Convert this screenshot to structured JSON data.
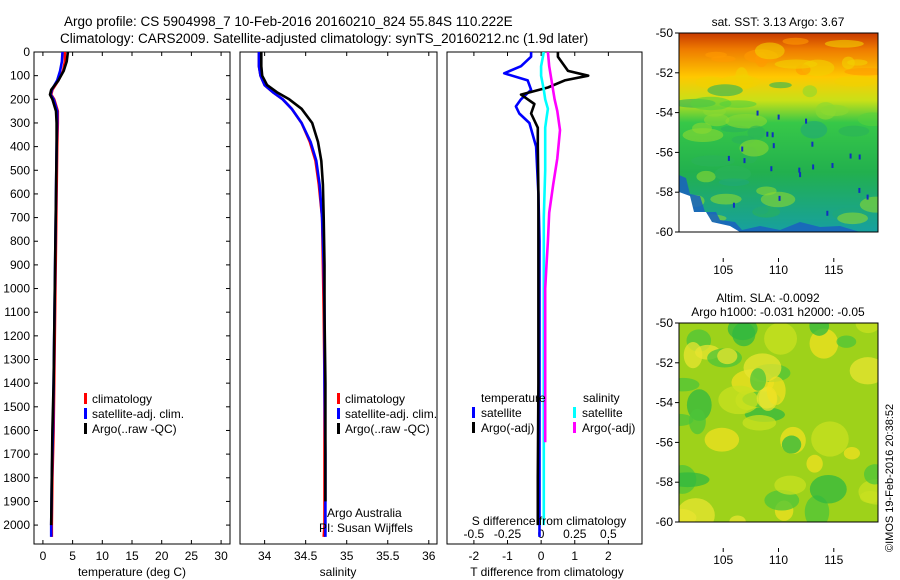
{
  "header": {
    "line1": "Argo profile: CS 5904998_7 10-Feb-2016 20160210_824 55.84S 110.222E",
    "line2": "Climatology: CARS2009. Satellite-adjusted climatology: synTS_20160212.nc (1.9d later)"
  },
  "side_label": "©IMOS 19-Feb-2016 20:38:52",
  "colors": {
    "climatology": "#ff0000",
    "satellite": "#0000ff",
    "argo": "#000000",
    "salinity_satellite": "#00ffff",
    "salinity_argo": "#ff00ff"
  },
  "chart_data": [
    {
      "id": "temperature",
      "type": "line",
      "xlabel": "temperature (deg C)",
      "ylabel": "",
      "xlim": [
        -1.5,
        31.5
      ],
      "ylim": [
        2080,
        0
      ],
      "y_axis_reversed": true,
      "xticks": [
        0,
        5,
        10,
        15,
        20,
        25,
        30
      ],
      "yticks": [
        0,
        100,
        200,
        300,
        400,
        500,
        600,
        700,
        800,
        900,
        1000,
        1100,
        1200,
        1300,
        1400,
        1500,
        1600,
        1700,
        1800,
        1900,
        2000
      ],
      "legend": [
        "climatology",
        "satellite-adj. clim.",
        "Argo(..raw -QC)"
      ],
      "series": [
        {
          "name": "climatology",
          "color": "#ff0000",
          "x": [
            3.7,
            3.7,
            3.4,
            2.6,
            1.6,
            1.4,
            1.9,
            2.5,
            2.5,
            2.4,
            2.3,
            2.2,
            2.1,
            2.0,
            1.9,
            1.8,
            1.6,
            1.5,
            1.5
          ],
          "y": [
            0,
            40,
            80,
            120,
            160,
            180,
            200,
            250,
            300,
            400,
            600,
            800,
            1000,
            1200,
            1400,
            1600,
            1800,
            2000,
            2050
          ]
        },
        {
          "name": "satellite-adj. clim.",
          "color": "#0000ff",
          "x": [
            3.3,
            3.2,
            2.9,
            2.4,
            1.5,
            1.3,
            1.8,
            2.4,
            2.4,
            2.3,
            2.2,
            2.1,
            2.0,
            1.9,
            1.8,
            1.7,
            1.5,
            1.4,
            1.4
          ],
          "y": [
            0,
            40,
            80,
            120,
            160,
            180,
            200,
            250,
            300,
            400,
            600,
            800,
            1000,
            1200,
            1400,
            1600,
            1800,
            2000,
            2050
          ]
        },
        {
          "name": "Argo(..raw -QC)",
          "color": "#000000",
          "x": [
            4.2,
            4.0,
            3.5,
            2.6,
            1.4,
            1.2,
            1.6,
            2.2,
            2.3,
            2.3,
            2.2,
            2.1,
            2.0,
            1.9,
            1.8,
            1.6,
            1.5,
            1.4
          ],
          "y": [
            0,
            40,
            80,
            120,
            160,
            180,
            200,
            250,
            300,
            400,
            600,
            800,
            1000,
            1200,
            1400,
            1600,
            1800,
            2000
          ]
        }
      ]
    },
    {
      "id": "salinity",
      "type": "line",
      "xlabel": "salinity",
      "ylabel": "",
      "xlim": [
        33.7,
        36.1
      ],
      "ylim": [
        2080,
        0
      ],
      "y_axis_reversed": true,
      "xticks": [
        34,
        34.5,
        35,
        35.5,
        36
      ],
      "xtick_labels": [
        "34",
        "34.5",
        "35",
        "35.5",
        "36"
      ],
      "legend": [
        "climatology",
        "satellite-adj. clim.",
        "Argo(..raw -QC)"
      ],
      "annotation": [
        "Argo Australia",
        "PI: Susan Wijffels"
      ],
      "series": [
        {
          "name": "climatology",
          "color": "#ff0000",
          "x": [
            33.93,
            33.93,
            33.95,
            34.0,
            34.1,
            34.22,
            34.33,
            34.45,
            34.55,
            34.62,
            34.66,
            34.7,
            34.71,
            34.72,
            34.73,
            34.73,
            34.73,
            34.73,
            34.72
          ],
          "y": [
            0,
            60,
            100,
            140,
            170,
            200,
            240,
            300,
            380,
            460,
            560,
            700,
            900,
            1100,
            1400,
            1700,
            1900,
            2000,
            2050
          ]
        },
        {
          "name": "satellite-adj. clim.",
          "color": "#0000ff",
          "x": [
            33.93,
            33.93,
            33.95,
            34.0,
            34.1,
            34.22,
            34.33,
            34.45,
            34.56,
            34.63,
            34.67,
            34.7,
            34.72,
            34.73,
            34.73,
            34.74,
            34.74,
            34.74,
            34.74
          ],
          "y": [
            0,
            60,
            100,
            140,
            170,
            200,
            240,
            300,
            380,
            460,
            560,
            700,
            900,
            1100,
            1400,
            1700,
            1900,
            2000,
            2050
          ]
        },
        {
          "name": "Argo(..raw -QC)",
          "color": "#000000",
          "x": [
            33.96,
            33.96,
            33.97,
            34.03,
            34.15,
            34.3,
            34.45,
            34.58,
            34.65,
            34.69,
            34.71,
            34.72,
            34.73,
            34.73,
            34.74,
            34.74,
            34.74
          ],
          "y": [
            0,
            60,
            100,
            140,
            170,
            200,
            240,
            300,
            380,
            460,
            560,
            700,
            900,
            1100,
            1400,
            1700,
            1900
          ]
        }
      ]
    },
    {
      "id": "difference",
      "type": "line",
      "xlabel": "T difference from climatology",
      "xlabel_top": "S difference from climatology",
      "ylabel": "",
      "xlim": [
        -2.8,
        3.0
      ],
      "ylim": [
        2080,
        0
      ],
      "y_axis_reversed": true,
      "xticks": [
        -2,
        -1,
        0,
        1,
        2
      ],
      "x2ticks": [
        -0.5,
        -0.25,
        0,
        0.25,
        0.5
      ],
      "legend_groups": [
        {
          "title": "temperature",
          "entries": [
            "satellite",
            "Argo(-adj)"
          ]
        },
        {
          "title": "salinity",
          "entries": [
            "satellite",
            "Argo(-adj)"
          ]
        }
      ],
      "series": [
        {
          "name": "temperature satellite",
          "color": "#0000ff",
          "x": [
            -0.3,
            -0.3,
            -0.6,
            -1.1,
            -0.4,
            -0.3,
            -0.6,
            -0.75,
            -0.65,
            -0.35,
            -0.15,
            -0.08,
            -0.05,
            -0.05,
            -0.05,
            -0.05,
            -0.05
          ],
          "y": [
            0,
            20,
            60,
            90,
            120,
            160,
            200,
            230,
            260,
            300,
            400,
            600,
            800,
            1200,
            1600,
            2000,
            2050
          ]
        },
        {
          "name": "temperature Argo(-adj)",
          "color": "#000000",
          "x": [
            0.5,
            0.5,
            0.7,
            0.8,
            1.4,
            0.7,
            0.2,
            -0.6,
            -0.2,
            -0.3,
            -0.1,
            -0.1,
            -0.08,
            -0.08,
            -0.08,
            -0.1,
            -0.1
          ],
          "y": [
            0,
            20,
            60,
            80,
            100,
            120,
            150,
            180,
            220,
            260,
            320,
            400,
            600,
            1000,
            1400,
            1800,
            2000
          ]
        },
        {
          "name": "salinity satellite",
          "color": "#00ffff",
          "x": [
            0.02,
            0.0,
            0.0,
            0.02,
            0.03,
            0.05,
            0.04,
            0.03,
            0.03,
            0.03,
            0.02,
            0.02,
            0.02,
            0.02,
            0.02
          ],
          "y": [
            0,
            60,
            100,
            160,
            200,
            240,
            280,
            320,
            400,
            500,
            700,
            900,
            1200,
            1600,
            2000
          ]
        },
        {
          "name": "salinity Argo(-adj)",
          "color": "#ff00ff",
          "x": [
            0.05,
            0.06,
            0.1,
            0.12,
            0.14,
            0.12,
            0.09,
            0.06,
            0.05,
            0.04,
            0.03,
            0.03,
            0.03,
            0.03
          ],
          "y": [
            0,
            60,
            200,
            250,
            330,
            450,
            560,
            680,
            800,
            900,
            1000,
            1200,
            1400,
            1650
          ]
        }
      ]
    },
    {
      "id": "sst_map",
      "type": "heatmap",
      "title": "sat. SST: 3.13 Argo: 3.67",
      "xticks": [
        105,
        110,
        115
      ],
      "yticks": [
        -50,
        -52,
        -54,
        -56,
        -58,
        -60
      ],
      "xlim": [
        101,
        119
      ],
      "ylim": [
        -60,
        -50
      ]
    },
    {
      "id": "sla_map",
      "type": "heatmap",
      "title": "Altim. SLA: -0.0092",
      "subtitle": "Argo h1000: -0.031 h2000: -0.05",
      "xticks": [
        105,
        110,
        115
      ],
      "yticks": [
        -50,
        -52,
        -54,
        -56,
        -58,
        -60
      ],
      "xlim": [
        101,
        119
      ],
      "ylim": [
        -60,
        -50
      ]
    }
  ]
}
